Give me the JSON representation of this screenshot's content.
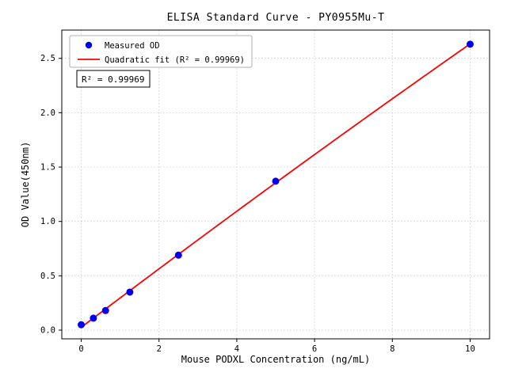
{
  "chart_data": {
    "type": "scatter",
    "title": "ELISA Standard Curve - PY0955Mu-T",
    "xlabel": "Mouse PODXL Concentration (ng/mL)",
    "ylabel": "OD Value(450nm)",
    "xlim": [
      -0.5,
      10.5
    ],
    "ylim": [
      -0.08,
      2.76
    ],
    "xticks": [
      0,
      2,
      4,
      6,
      8,
      10
    ],
    "xtick_labels": [
      "0",
      "2",
      "4",
      "6",
      "8",
      "10"
    ],
    "yticks": [
      0,
      0.5,
      1,
      1.5,
      2,
      2.5
    ],
    "ytick_labels": [
      "0.0",
      "0.5",
      "1.0",
      "1.5",
      "2.0",
      "2.5"
    ],
    "grid": true,
    "legend_position": "upper left",
    "colors": {
      "points": "#0000ee",
      "fit_line": "#ff0000",
      "grid": "#c8c8c8"
    },
    "series": [
      {
        "name": "Measured OD",
        "type": "scatter",
        "color": "#0000ee",
        "points": [
          [
            0,
            0.05
          ],
          [
            0.313,
            0.11
          ],
          [
            0.625,
            0.18
          ],
          [
            1.25,
            0.35
          ],
          [
            2.5,
            0.69
          ],
          [
            5,
            1.37
          ],
          [
            10,
            2.63
          ]
        ]
      },
      {
        "name": "Quadratic fit (R² = 0.99969)",
        "type": "quadratic-fit",
        "color": "#ff0000",
        "fit_range": [
          0,
          10
        ],
        "r_squared": 0.99969
      }
    ],
    "annotation": {
      "text": "R² = 0.99969"
    }
  }
}
